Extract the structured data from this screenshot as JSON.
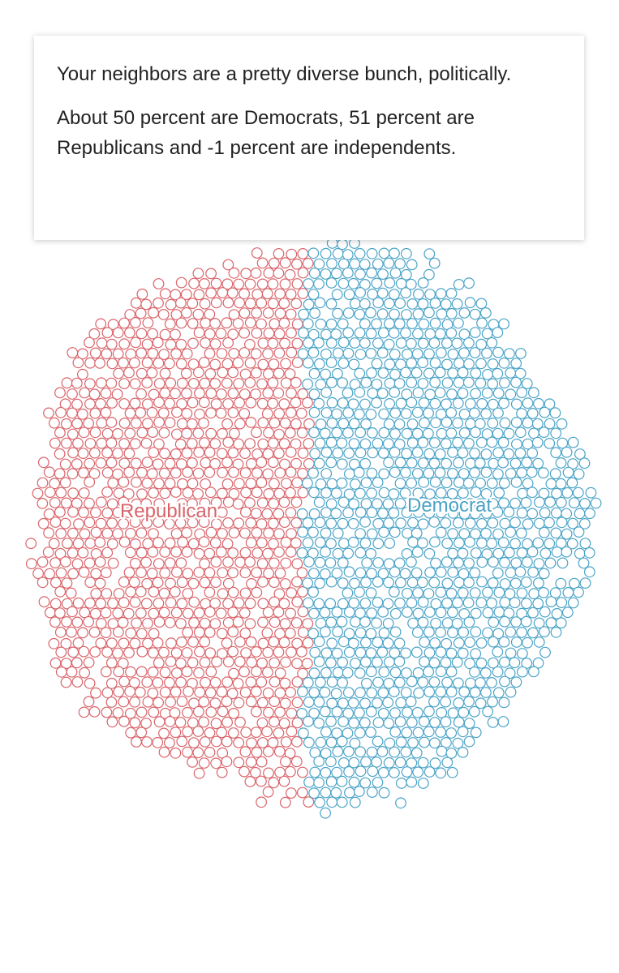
{
  "card": {
    "headline": "Your neighbors are a pretty diverse bunch, politically.",
    "detail": "About 50 percent are Democrats, 51 percent are Republicans and -1 percent are independents."
  },
  "chart_data": {
    "type": "scatter",
    "title": "",
    "series": [
      {
        "name": "Republican",
        "percent": 51,
        "color": "#d9646b"
      },
      {
        "name": "Democrat",
        "percent": 50,
        "color": "#4aa3c7"
      },
      {
        "name": "independents",
        "percent": -1,
        "color": "#999999"
      }
    ],
    "grid": false,
    "legend": "direct labels on clusters"
  }
}
